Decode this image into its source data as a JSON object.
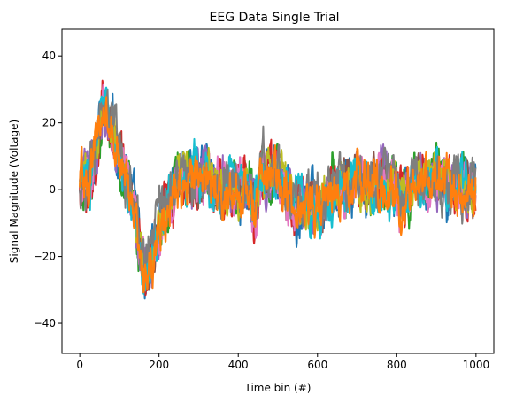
{
  "chart_data": {
    "type": "line",
    "title": "EEG Data Single Trial",
    "xlabel": "Time bin (#)",
    "ylabel": "Signal Magnitude (Voltage)",
    "xlim": [
      -45,
      1045
    ],
    "ylim": [
      -49,
      48
    ],
    "xticks": [
      0,
      200,
      400,
      600,
      800,
      1000
    ],
    "yticks": [
      -40,
      -20,
      0,
      20,
      40
    ],
    "grid": false,
    "legend": "none",
    "n_points": 1000,
    "envelope": {
      "x": [
        0,
        20,
        40,
        60,
        80,
        100,
        120,
        140,
        160,
        180,
        200,
        220,
        240,
        260,
        280,
        300,
        320,
        340,
        360,
        380,
        400,
        420,
        440,
        460,
        480,
        500,
        520,
        540,
        560,
        580,
        600,
        620,
        640,
        660,
        680,
        700,
        720,
        740,
        760,
        780,
        800,
        820,
        840,
        860,
        880,
        900,
        920,
        940,
        960,
        980,
        1000
      ],
      "mean": [
        3,
        5,
        12,
        25,
        18,
        10,
        2,
        -8,
        -25,
        -22,
        -12,
        -5,
        0,
        5,
        3,
        2,
        6,
        0,
        -3,
        0,
        -2,
        0,
        -5,
        5,
        3,
        5,
        0,
        -3,
        -5,
        -3,
        -5,
        -3,
        0,
        2,
        0,
        5,
        2,
        0,
        3,
        0,
        0,
        -3,
        0,
        2,
        3,
        5,
        2,
        0,
        2,
        0,
        0
      ]
    },
    "series": [
      {
        "color": "#1f77b4",
        "seed": 11,
        "amp": 9
      },
      {
        "color": "#2ca02c",
        "seed": 23,
        "amp": 8
      },
      {
        "color": "#d62728",
        "seed": 37,
        "amp": 9
      },
      {
        "color": "#9467bd",
        "seed": 41,
        "amp": 8
      },
      {
        "color": "#8c564b",
        "seed": 53,
        "amp": 7
      },
      {
        "color": "#e377c2",
        "seed": 67,
        "amp": 8
      },
      {
        "color": "#bcbd22",
        "seed": 71,
        "amp": 7
      },
      {
        "color": "#17becf",
        "seed": 83,
        "amp": 8
      },
      {
        "color": "#7f7f7f",
        "seed": 97,
        "amp": 9
      },
      {
        "color": "#ff7f0e",
        "seed": 101,
        "amp": 9
      }
    ]
  }
}
